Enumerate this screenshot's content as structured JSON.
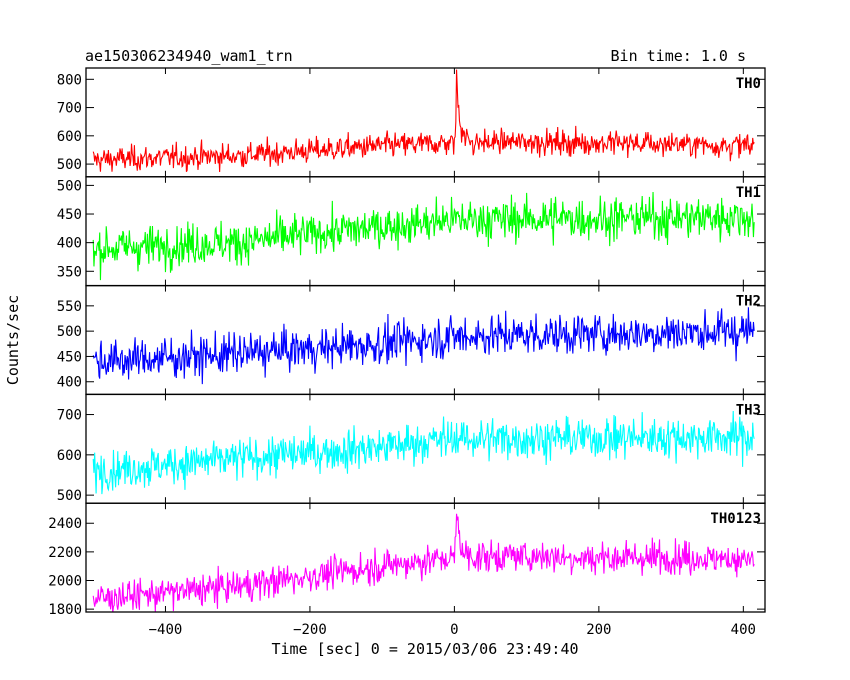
{
  "header": {
    "left_title": "ae150306234940_wam1_trn",
    "right_title": "Bin time: 1.0 s"
  },
  "chart_data": {
    "type": "line",
    "xlabel": "Time [sec] 0 = 2015/03/06 23:49:40",
    "ylabel": "Counts/sec",
    "xlim": [
      -510,
      430
    ],
    "x_ticks": [
      -400,
      -200,
      0,
      200,
      400
    ],
    "x_tick_labels": [
      "−400",
      "−200",
      "0",
      "200",
      "400"
    ],
    "bin_time_s": 1.0,
    "x_range": [
      -500,
      415
    ],
    "grid": false,
    "panels": [
      {
        "label": "TH0",
        "color": "#ff0000",
        "ylim": [
          455,
          840
        ],
        "y_ticks": [
          500,
          600,
          700,
          800
        ],
        "trend": [
          [
            -500,
            515
          ],
          [
            -300,
            530
          ],
          [
            -100,
            565
          ],
          [
            0,
            575
          ],
          [
            100,
            580
          ],
          [
            415,
            565
          ]
        ],
        "noise_sd": 22,
        "peak": {
          "t": 3,
          "value": 840
        }
      },
      {
        "label": "TH1",
        "color": "#00ff00",
        "ylim": [
          325,
          515
        ],
        "y_ticks": [
          350,
          400,
          450,
          500
        ],
        "trend": [
          [
            -500,
            390
          ],
          [
            -300,
            400
          ],
          [
            -200,
            415
          ],
          [
            0,
            440
          ],
          [
            415,
            445
          ]
        ],
        "noise_sd": 18,
        "peak": null
      },
      {
        "label": "TH2",
        "color": "#0000ff",
        "ylim": [
          375,
          590
        ],
        "y_ticks": [
          400,
          450,
          500,
          550
        ],
        "trend": [
          [
            -500,
            440
          ],
          [
            -300,
            455
          ],
          [
            -100,
            475
          ],
          [
            0,
            490
          ],
          [
            415,
            500
          ]
        ],
        "noise_sd": 20,
        "peak": null
      },
      {
        "label": "TH3",
        "color": "#00ffff",
        "ylim": [
          480,
          750
        ],
        "y_ticks": [
          500,
          600,
          700
        ],
        "trend": [
          [
            -500,
            560
          ],
          [
            -300,
            590
          ],
          [
            -100,
            620
          ],
          [
            0,
            640
          ],
          [
            415,
            645
          ]
        ],
        "noise_sd": 25,
        "peak": null
      },
      {
        "label": "TH0123",
        "color": "#ff00ff",
        "ylim": [
          1780,
          2540
        ],
        "y_ticks": [
          1800,
          2000,
          2200,
          2400
        ],
        "trend": [
          [
            -500,
            1870
          ],
          [
            -300,
            1960
          ],
          [
            -100,
            2100
          ],
          [
            0,
            2160
          ],
          [
            100,
            2170
          ],
          [
            415,
            2150
          ]
        ],
        "noise_sd": 55,
        "peak": {
          "t": 3,
          "value": 2540
        }
      }
    ]
  }
}
